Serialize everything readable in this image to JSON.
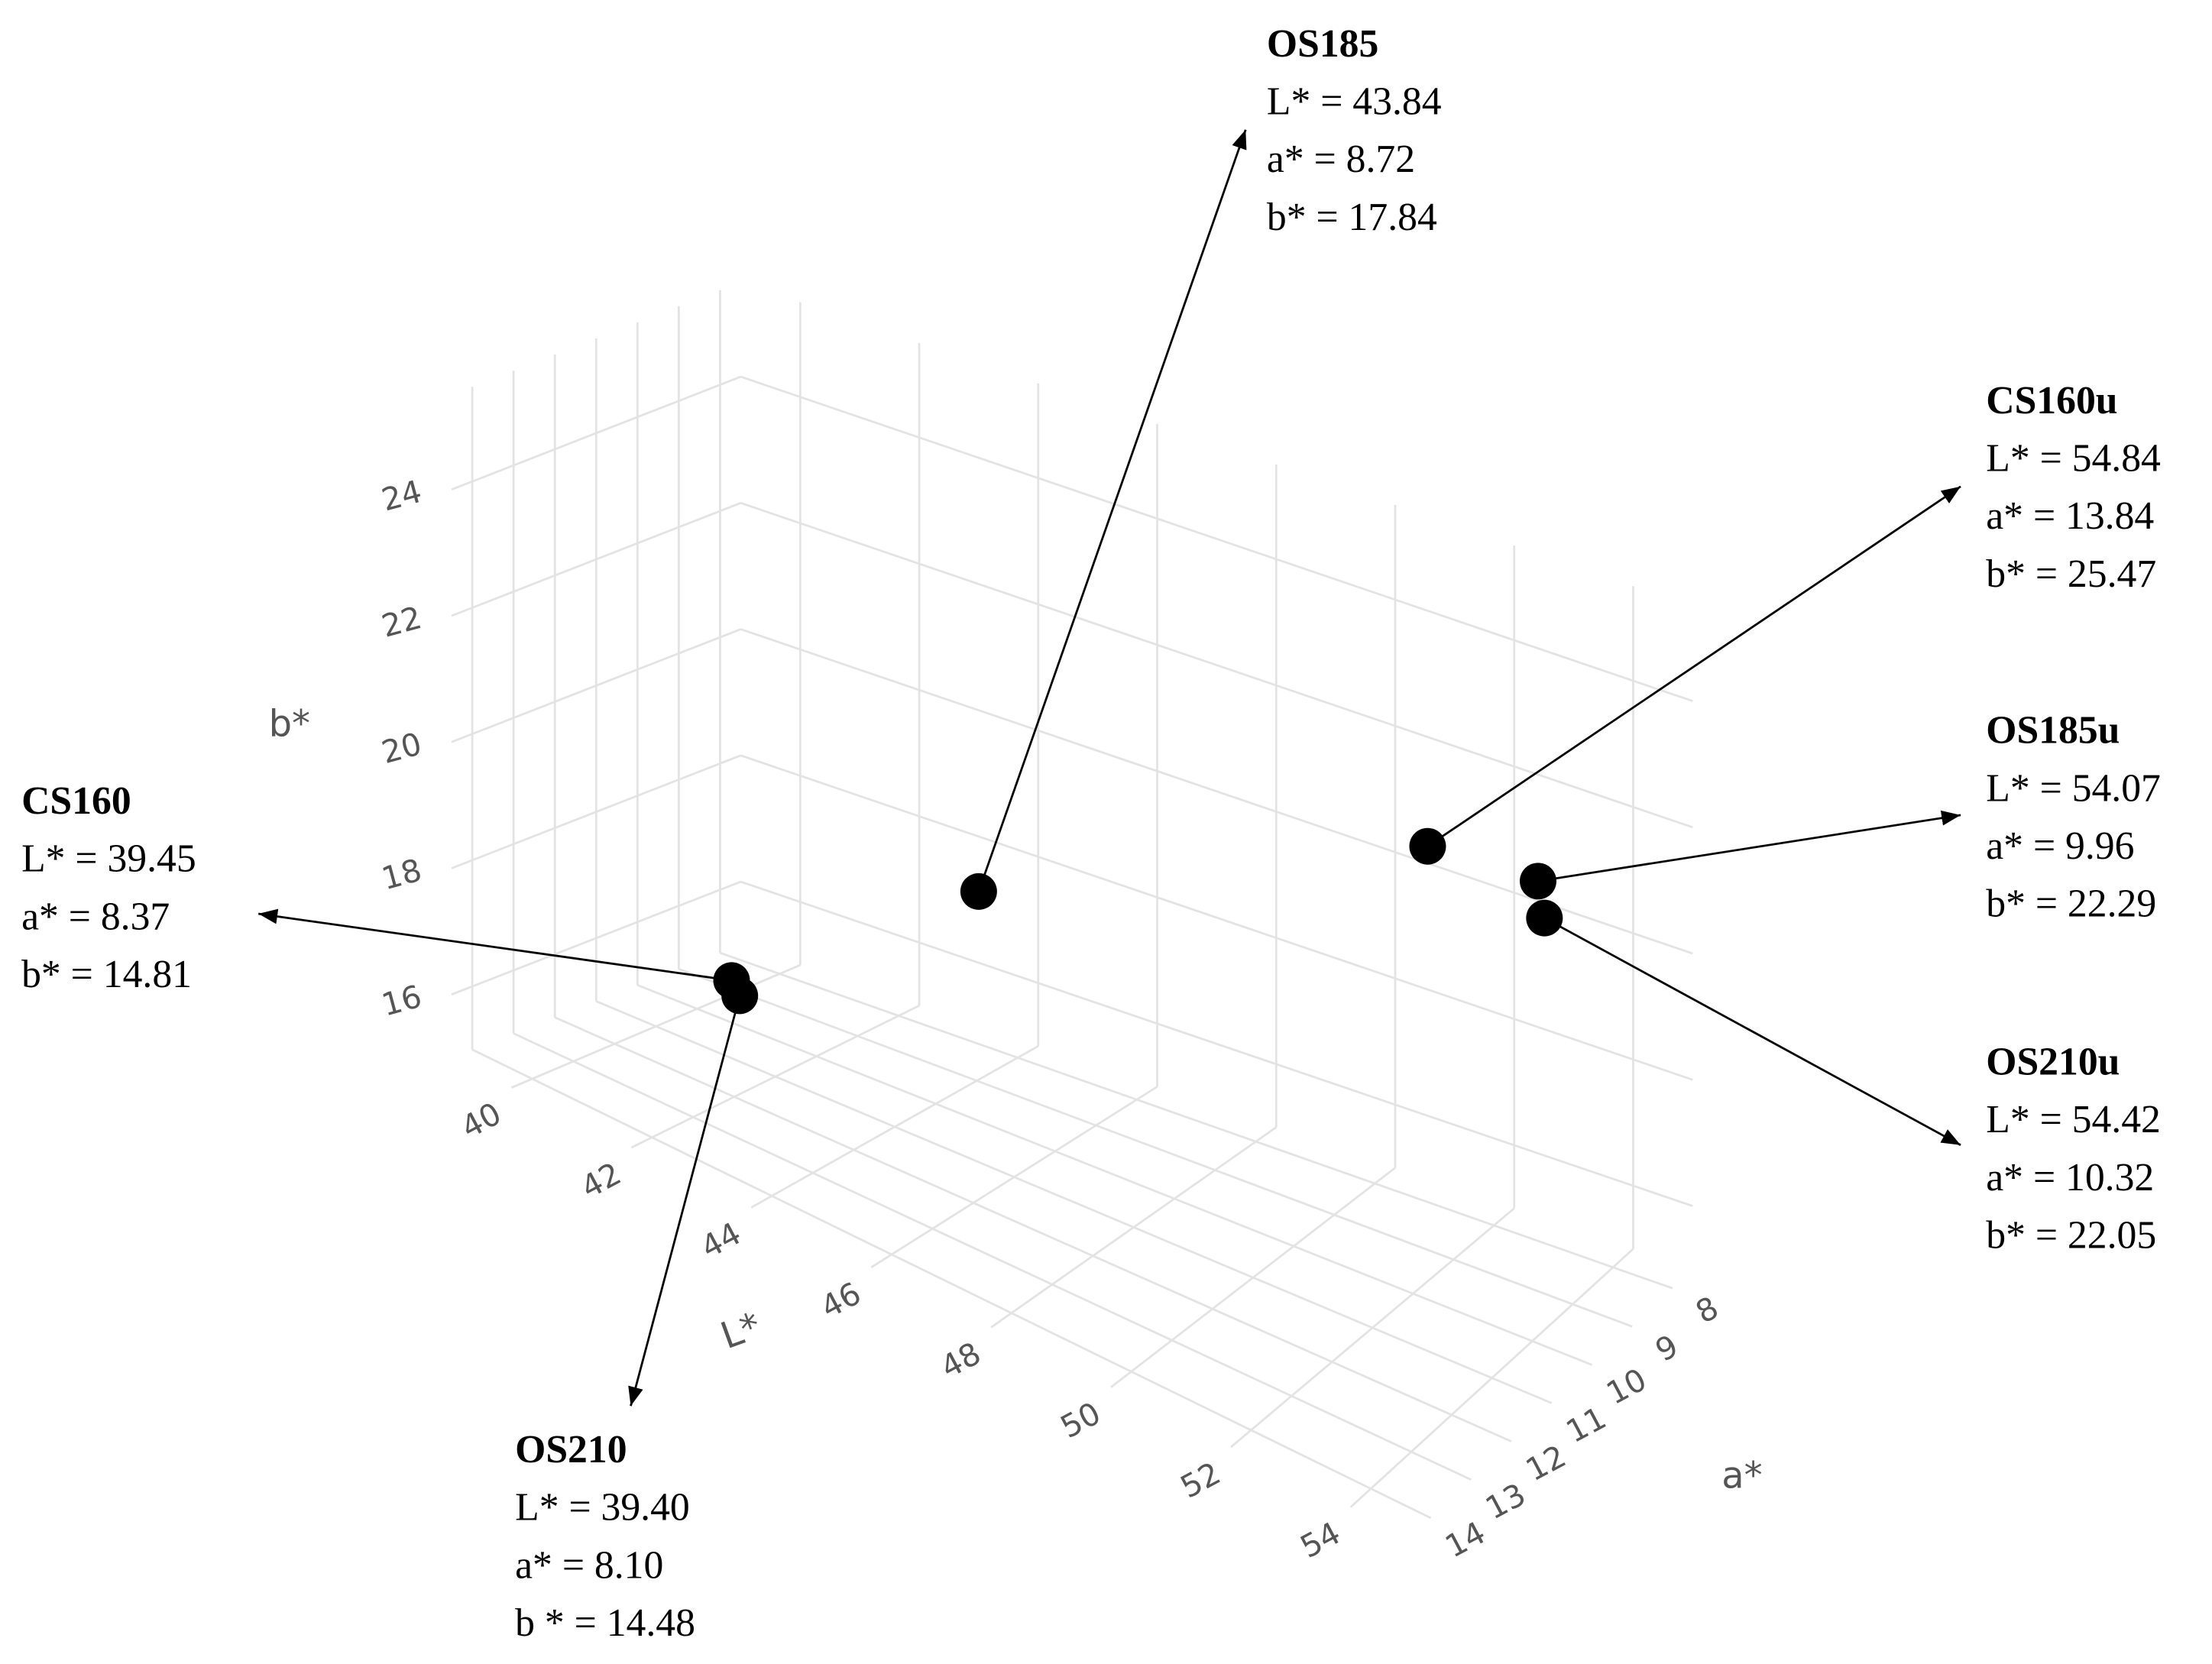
{
  "chart_data": {
    "type": "scatter3d",
    "categories": [
      "OS185",
      "CS160u",
      "OS185u",
      "OS210u",
      "CS160",
      "OS210"
    ],
    "color": "#000000",
    "series": [
      {
        "name": "L*",
        "values": [
          43.84,
          54.84,
          54.07,
          54.42,
          39.45,
          39.4
        ],
        "value_labels": [
          "L* = 43.84",
          "L* = 54.84",
          "L* = 54.07",
          "L* = 54.42",
          "L* = 39.45",
          "L* = 39.40"
        ]
      },
      {
        "name": "a*",
        "values": [
          8.72,
          13.84,
          9.96,
          10.32,
          8.37,
          8.1
        ],
        "value_labels": [
          "a* = 8.72",
          "a* = 13.84",
          "a* = 9.96",
          "a* = 10.32",
          "a* = 8.37",
          "a* = 8.10"
        ]
      },
      {
        "name": "b*",
        "values": [
          17.84,
          25.47,
          22.29,
          22.05,
          14.81,
          14.48
        ],
        "value_labels": [
          "b* = 17.84",
          "b* = 25.47",
          "b* = 22.29",
          "b* = 22.05",
          "b* = 14.81",
          "b * = 14.48"
        ]
      }
    ],
    "xlim": [
      39,
      55
    ],
    "xticks": [
      40,
      42,
      44,
      46,
      48,
      50,
      52,
      54
    ],
    "ylim": [
      7.5,
      14.5
    ],
    "yticks": [
      8,
      9,
      10,
      11,
      12,
      13,
      14
    ],
    "zlim": [
      15,
      25.5
    ],
    "zticks": [
      16,
      18,
      20,
      22,
      24
    ],
    "grid": true
  }
}
